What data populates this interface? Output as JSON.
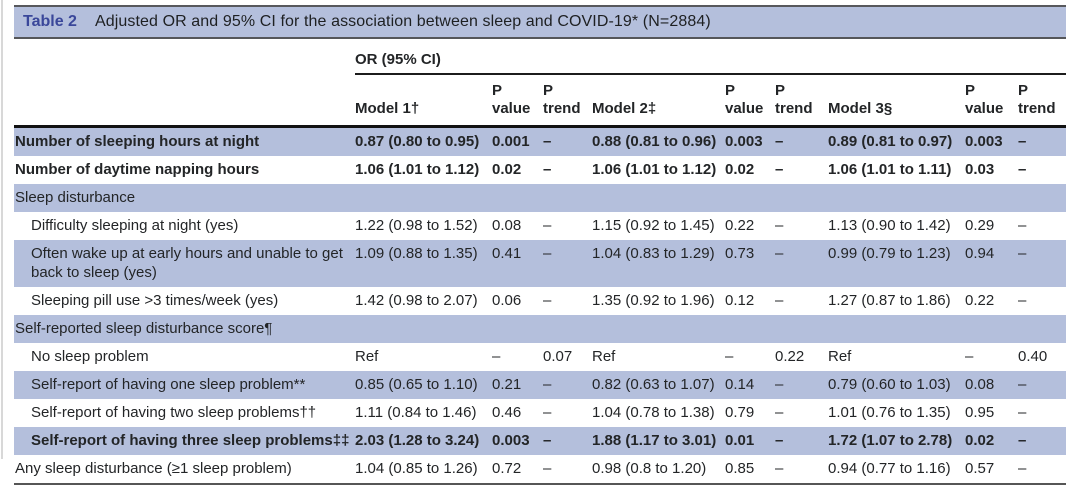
{
  "colors": {
    "row_highlight": "#b4bfdc",
    "table_number_accent": "#3a479a",
    "text": "#232527",
    "rule_dark": "#1c1c1c"
  },
  "table": {
    "title_label": "Table 2",
    "title_text": "Adjusted OR and 95% CI for the association between sleep and COVID-19* (N=2884)",
    "group_header": "OR (95% CI)",
    "columns": [
      {
        "lines": [
          "Model 1†"
        ]
      },
      {
        "lines": [
          "P",
          "value"
        ]
      },
      {
        "lines": [
          "P",
          "trend"
        ]
      },
      {
        "lines": [
          "Model 2‡"
        ]
      },
      {
        "lines": [
          "P",
          "value"
        ]
      },
      {
        "lines": [
          "P",
          "trend"
        ]
      },
      {
        "lines": [
          "Model 3§"
        ]
      },
      {
        "lines": [
          "P value"
        ]
      },
      {
        "lines": [
          "P",
          "trend"
        ]
      }
    ],
    "rows": [
      {
        "label": "Number of sleeping hours at night",
        "indent": false,
        "section": false,
        "bold": true,
        "shaded": true,
        "cells": [
          "0.87 (0.80 to 0.95)",
          "0.001",
          "–",
          "0.88 (0.81 to 0.96)",
          "0.003",
          "–",
          "0.89 (0.81 to 0.97)",
          "0.003",
          "–"
        ]
      },
      {
        "label": "Number of daytime napping hours",
        "indent": false,
        "section": false,
        "bold": true,
        "shaded": false,
        "cells": [
          "1.06 (1.01 to 1.12)",
          "0.02",
          "–",
          "1.06 (1.01 to 1.12)",
          "0.02",
          "–",
          "1.06 (1.01 to 1.11)",
          "0.03",
          "–"
        ]
      },
      {
        "label": "Sleep disturbance",
        "indent": false,
        "section": true,
        "bold": false,
        "shaded": true,
        "cells": []
      },
      {
        "label": "Difficulty sleeping at night (yes)",
        "indent": true,
        "section": false,
        "bold": false,
        "shaded": false,
        "cells": [
          "1.22 (0.98 to 1.52)",
          "0.08",
          "–",
          "1.15 (0.92 to 1.45)",
          "0.22",
          "–",
          "1.13 (0.90 to 1.42)",
          "0.29",
          "–"
        ]
      },
      {
        "label": "Often wake up at early hours and unable to get back to sleep (yes)",
        "indent": true,
        "section": false,
        "bold": false,
        "shaded": true,
        "cells": [
          "1.09 (0.88 to 1.35)",
          "0.41",
          "–",
          "1.04 (0.83 to 1.29)",
          "0.73",
          "–",
          "0.99 (0.79 to 1.23)",
          "0.94",
          "–"
        ]
      },
      {
        "label": "Sleeping pill use >3 times/week (yes)",
        "indent": true,
        "section": false,
        "bold": false,
        "shaded": false,
        "cells": [
          "1.42 (0.98 to 2.07)",
          "0.06",
          "–",
          "1.35 (0.92 to 1.96)",
          "0.12",
          "–",
          "1.27 (0.87 to 1.86)",
          "0.22",
          "–"
        ]
      },
      {
        "label": "Self-reported sleep disturbance score¶",
        "indent": false,
        "section": true,
        "bold": false,
        "shaded": true,
        "cells": []
      },
      {
        "label": "No sleep problem",
        "indent": true,
        "section": false,
        "bold": false,
        "shaded": false,
        "cells": [
          "Ref",
          "–",
          "0.07",
          "Ref",
          "–",
          "0.22",
          "Ref",
          "–",
          "0.40"
        ]
      },
      {
        "label": "Self-report of having one sleep problem**",
        "indent": true,
        "section": false,
        "bold": false,
        "shaded": true,
        "cells": [
          "0.85 (0.65 to 1.10)",
          "0.21",
          "–",
          "0.82 (0.63 to 1.07)",
          "0.14",
          "–",
          "0.79 (0.60 to 1.03)",
          "0.08",
          "–"
        ]
      },
      {
        "label": "Self-report of having two sleep problems††",
        "indent": true,
        "section": false,
        "bold": false,
        "shaded": false,
        "cells": [
          "1.11 (0.84 to 1.46)",
          "0.46",
          "–",
          "1.04 (0.78 to 1.38)",
          "0.79",
          "–",
          "1.01 (0.76 to 1.35)",
          "0.95",
          "–"
        ]
      },
      {
        "label": "Self-report of having three sleep problems‡‡",
        "indent": true,
        "section": false,
        "bold": true,
        "shaded": true,
        "cells": [
          "2.03 (1.28 to 3.24)",
          "0.003",
          "–",
          "1.88 (1.17 to 3.01)",
          "0.01",
          "–",
          "1.72 (1.07 to 2.78)",
          "0.02",
          "–"
        ]
      },
      {
        "label": "Any sleep disturbance (≥1 sleep problem)",
        "indent": false,
        "section": false,
        "bold": false,
        "shaded": false,
        "cells": [
          "1.04 (0.85 to 1.26)",
          "0.72",
          "–",
          "0.98 (0.8 to 1.20)",
          "0.85",
          "–",
          "0.94 (0.77 to 1.16)",
          "0.57",
          "–"
        ]
      }
    ]
  }
}
